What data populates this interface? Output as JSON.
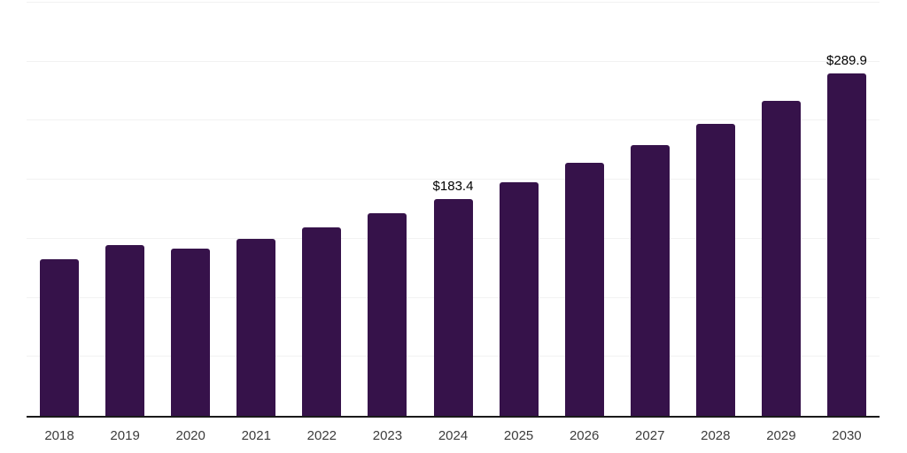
{
  "chart_data": {
    "type": "bar",
    "title": "",
    "xlabel": "",
    "ylabel": "",
    "categories": [
      "2018",
      "2019",
      "2020",
      "2021",
      "2022",
      "2023",
      "2024",
      "2025",
      "2026",
      "2027",
      "2028",
      "2029",
      "2030"
    ],
    "values": [
      133.0,
      144.5,
      141.5,
      150.0,
      160.0,
      172.0,
      183.4,
      197.5,
      214.0,
      229.5,
      247.5,
      267.0,
      289.9
    ],
    "bar_labels": [
      "",
      "",
      "",
      "",
      "",
      "",
      "$183.4",
      "",
      "",
      "",
      "",
      "",
      "$289.9"
    ],
    "ylim": [
      0,
      350
    ],
    "grid_step": 50,
    "grid": true,
    "legend": false,
    "y_tick_labels_visible": false,
    "colors": {
      "bar": "#36124A",
      "grid": "#f2f2f2",
      "axis_line": "#1a1a1a",
      "tick_label": "#3c3c3c",
      "value_label": "#000000",
      "background": "#ffffff"
    }
  }
}
